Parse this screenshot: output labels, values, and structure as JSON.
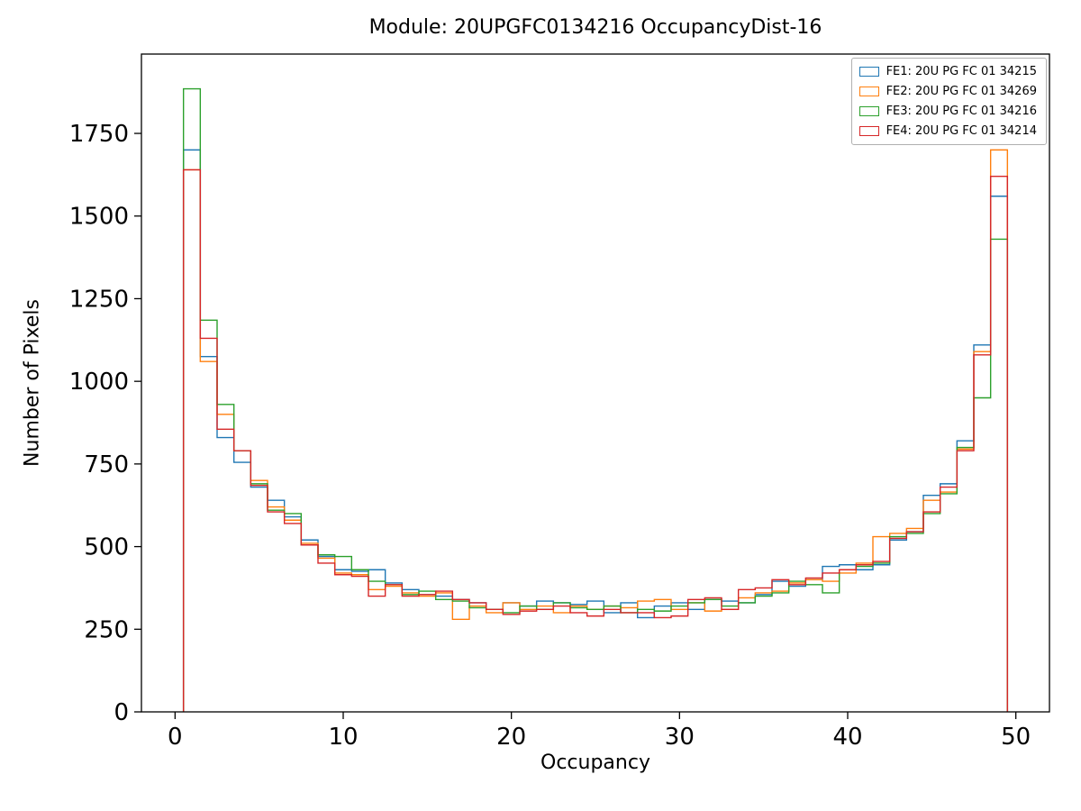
{
  "figure": {
    "title": "Module: 20UPGFC0134216 OccupancyDist-16",
    "xlabel": "Occupancy",
    "ylabel": "Number of Pixels",
    "background": "#ffffff"
  },
  "chart_data": {
    "type": "step-histogram",
    "title": "Module: 20UPGFC0134216 OccupancyDist-16",
    "xlabel": "Occupancy",
    "ylabel": "Number of Pixels",
    "bin_start": 0.5,
    "bin_width": 1,
    "bin_count": 49,
    "xlim": [
      -2,
      52
    ],
    "ylim": [
      0,
      1990
    ],
    "xticks": [
      0,
      10,
      20,
      30,
      40,
      50
    ],
    "yticks": [
      0,
      250,
      500,
      750,
      1000,
      1250,
      1500,
      1750
    ],
    "grid": false,
    "legend_position": "upper right",
    "axis_color": "#000000",
    "series": [
      {
        "name": "FE1: 20U PG FC 01 34215",
        "color": "#1f77b4",
        "values": [
          1700,
          1075,
          830,
          755,
          680,
          640,
          590,
          520,
          470,
          430,
          425,
          430,
          390,
          370,
          355,
          350,
          340,
          330,
          310,
          330,
          320,
          335,
          330,
          325,
          335,
          300,
          330,
          285,
          320,
          330,
          310,
          340,
          335,
          330,
          355,
          395,
          380,
          400,
          440,
          445,
          430,
          445,
          520,
          545,
          655,
          690,
          820,
          1110,
          1560
        ]
      },
      {
        "name": "FE2: 20U PG FC 01 34269",
        "color": "#ff7f0e",
        "values": [
          1640,
          1060,
          900,
          790,
          700,
          620,
          580,
          510,
          465,
          420,
          415,
          370,
          380,
          360,
          350,
          360,
          280,
          320,
          300,
          330,
          310,
          320,
          300,
          320,
          310,
          320,
          315,
          335,
          340,
          310,
          330,
          305,
          310,
          345,
          360,
          365,
          390,
          400,
          395,
          420,
          450,
          530,
          540,
          555,
          640,
          665,
          795,
          1090,
          1700
        ]
      },
      {
        "name": "FE3: 20U PG FC 01 34216",
        "color": "#2ca02c",
        "values": [
          1885,
          1185,
          930,
          790,
          690,
          610,
          600,
          505,
          475,
          470,
          430,
          395,
          385,
          355,
          365,
          340,
          335,
          315,
          310,
          300,
          320,
          310,
          330,
          315,
          310,
          320,
          300,
          310,
          305,
          320,
          330,
          340,
          320,
          330,
          350,
          360,
          395,
          385,
          360,
          430,
          440,
          450,
          530,
          540,
          600,
          660,
          800,
          950,
          1430
        ]
      },
      {
        "name": "FE4: 20U PG FC 01 34214",
        "color": "#d62728",
        "values": [
          1640,
          1130,
          855,
          790,
          685,
          605,
          570,
          505,
          450,
          415,
          410,
          350,
          385,
          350,
          355,
          365,
          340,
          330,
          310,
          295,
          305,
          310,
          320,
          300,
          290,
          310,
          300,
          300,
          285,
          290,
          340,
          345,
          310,
          370,
          375,
          400,
          385,
          405,
          420,
          430,
          445,
          455,
          525,
          545,
          605,
          680,
          790,
          1080,
          1620
        ]
      }
    ]
  }
}
